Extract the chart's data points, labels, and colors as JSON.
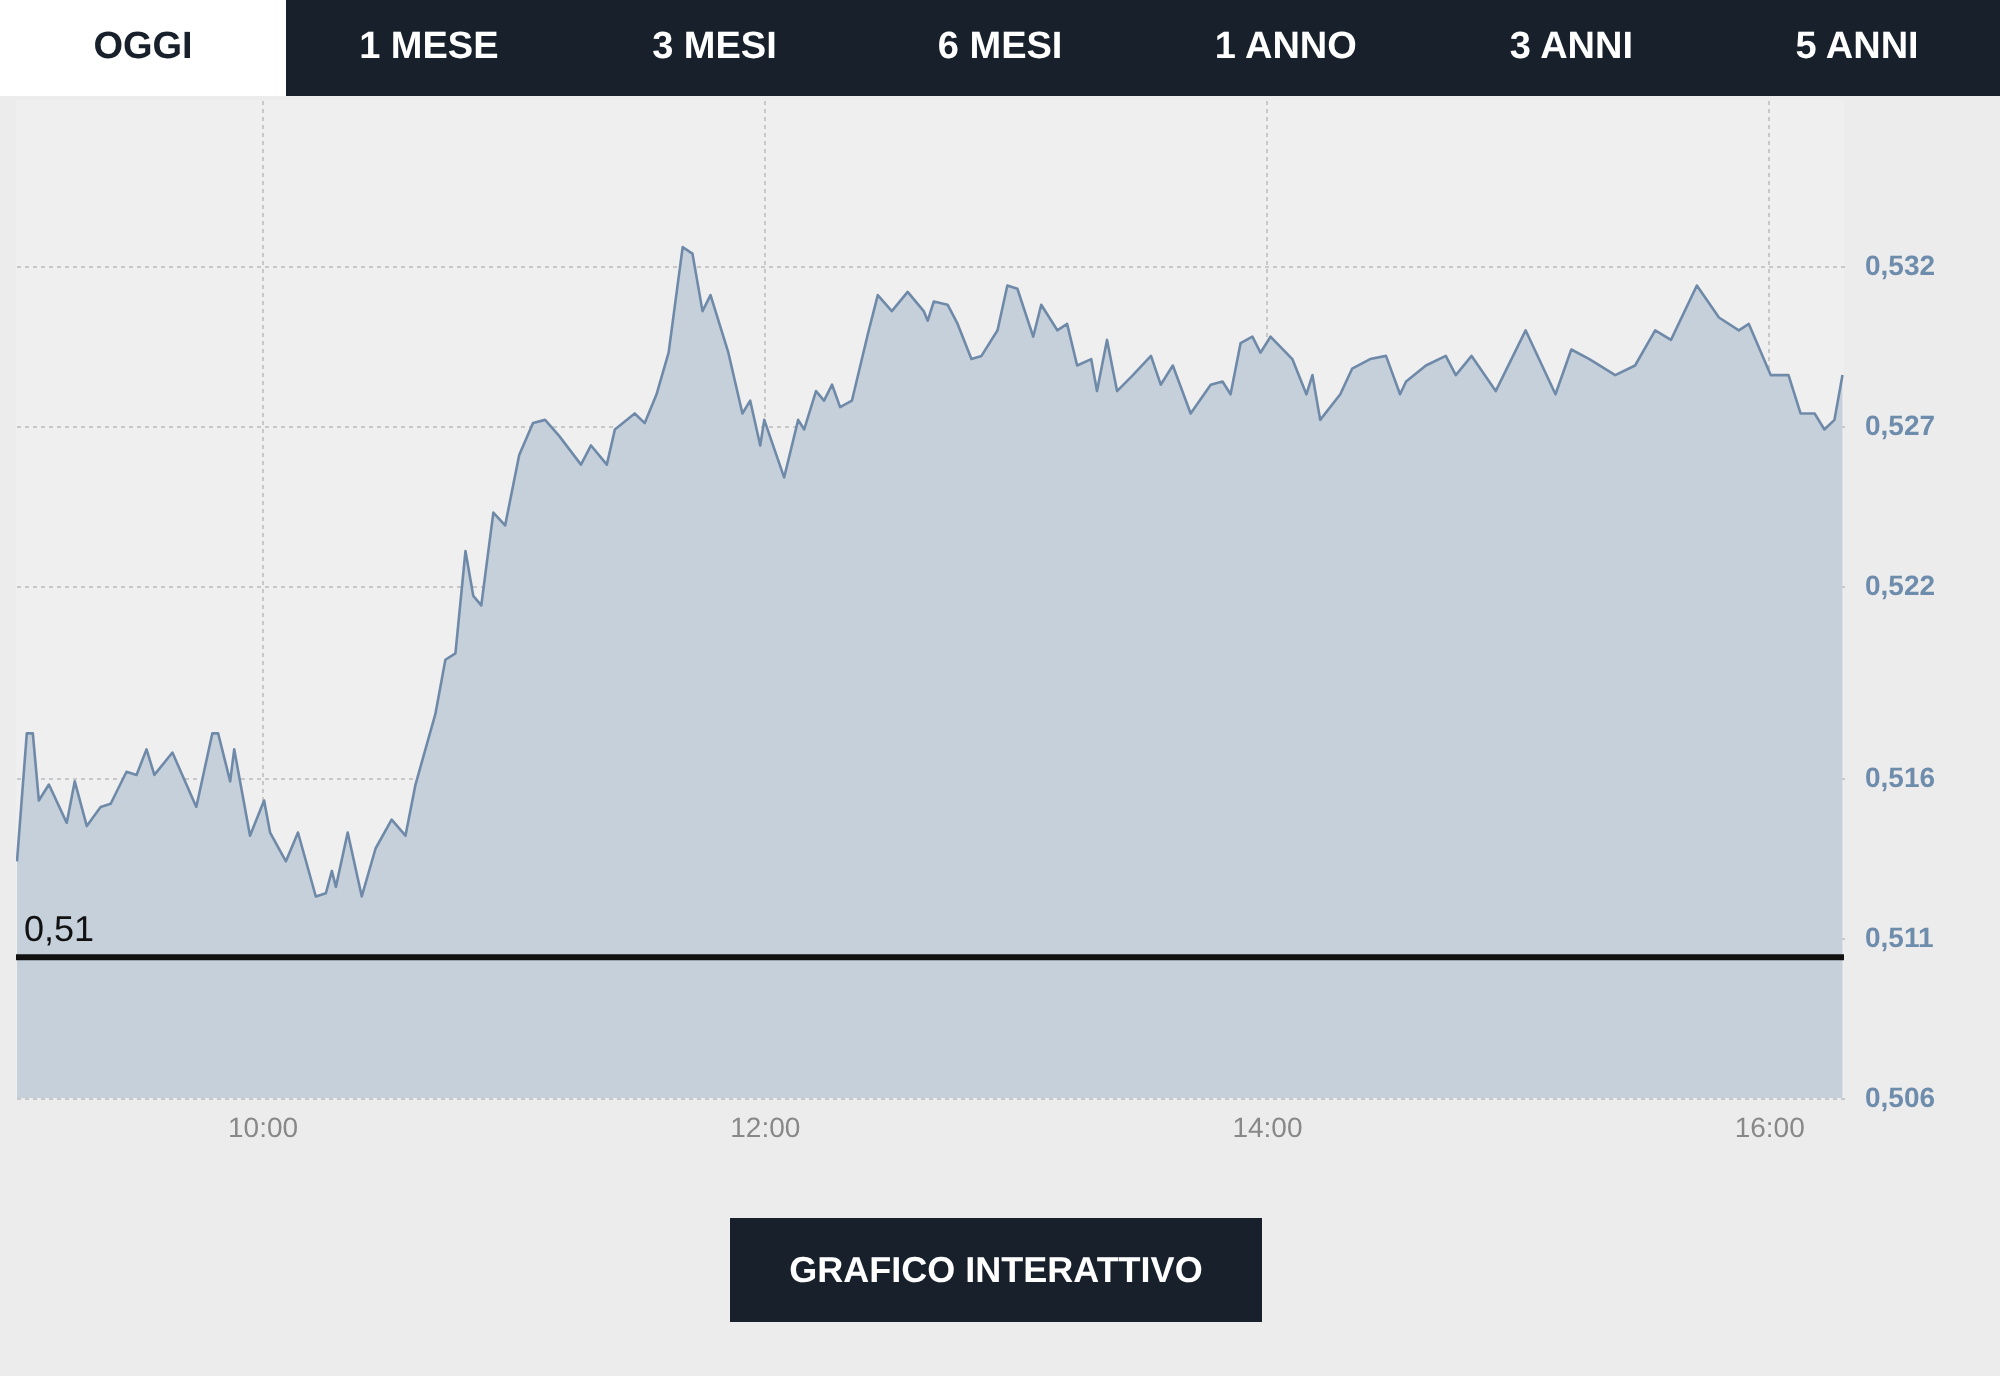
{
  "chart_data": {
    "type": "area",
    "annotations": [
      "OGGI",
      "1 MESE",
      "3 MESI",
      "6 MESI",
      "1 ANNO",
      "3 ANNI",
      "5 ANNI",
      "GRAFICO INTERATTIVO"
    ],
    "x": [
      9.024,
      9.063,
      9.087,
      9.111,
      9.151,
      9.222,
      9.254,
      9.302,
      9.357,
      9.397,
      9.46,
      9.5,
      9.54,
      9.571,
      9.643,
      9.738,
      9.802,
      9.825,
      9.873,
      9.889,
      9.952,
      10.008,
      10.032,
      10.095,
      10.143,
      10.214,
      10.254,
      10.278,
      10.294,
      10.341,
      10.397,
      10.452,
      10.516,
      10.571,
      10.611,
      10.69,
      10.73,
      10.77,
      10.81,
      10.841,
      10.873,
      10.921,
      10.968,
      11.024,
      11.079,
      11.127,
      11.183,
      11.27,
      11.31,
      11.373,
      11.405,
      11.484,
      11.524,
      11.571,
      11.619,
      11.675,
      11.714,
      11.754,
      11.786,
      11.857,
      11.913,
      11.944,
      11.984,
      12.0,
      12.079,
      12.135,
      12.159,
      12.206,
      12.238,
      12.27,
      12.302,
      12.349,
      12.413,
      12.452,
      12.508,
      12.571,
      12.635,
      12.651,
      12.675,
      12.73,
      12.77,
      12.825,
      12.865,
      12.929,
      12.968,
      13.008,
      13.071,
      13.103,
      13.167,
      13.206,
      13.246,
      13.302,
      13.325,
      13.365,
      13.405,
      13.468,
      13.54,
      13.579,
      13.627,
      13.698,
      13.778,
      13.825,
      13.857,
      13.897,
      13.944,
      13.976,
      14.016,
      14.103,
      14.159,
      14.183,
      14.214,
      14.294,
      14.341,
      14.413,
      14.476,
      14.532,
      14.556,
      14.635,
      14.714,
      14.754,
      14.817,
      14.913,
      15.032,
      15.151,
      15.214,
      15.286,
      15.389,
      15.468,
      15.548,
      15.611,
      15.714,
      15.802,
      15.881,
      15.921,
      16.008,
      16.079,
      16.127,
      16.183,
      16.222,
      16.262,
      16.294
    ],
    "series": [
      {
        "color": "#6f8aa8",
        "values": [
          0.5134,
          0.5174,
          0.5174,
          0.5153,
          0.5158,
          0.5146,
          0.5159,
          0.5145,
          0.5151,
          0.5152,
          0.5162,
          0.5161,
          0.5169,
          0.5161,
          0.5168,
          0.5151,
          0.5174,
          0.5174,
          0.5159,
          0.5169,
          0.5142,
          0.5153,
          0.5143,
          0.5134,
          0.5143,
          0.5123,
          0.5124,
          0.5131,
          0.5126,
          0.5143,
          0.5123,
          0.5138,
          0.5147,
          0.5142,
          0.5158,
          0.518,
          0.5197,
          0.5199,
          0.5231,
          0.5217,
          0.5214,
          0.5243,
          0.5239,
          0.5261,
          0.5271,
          0.5272,
          0.5267,
          0.5258,
          0.5264,
          0.5258,
          0.5269,
          0.5274,
          0.5271,
          0.528,
          0.5293,
          0.5326,
          0.5324,
          0.5306,
          0.5311,
          0.5293,
          0.5274,
          0.5278,
          0.5264,
          0.5272,
          0.5254,
          0.5272,
          0.5269,
          0.5281,
          0.5278,
          0.5283,
          0.5276,
          0.5278,
          0.5299,
          0.5311,
          0.5306,
          0.5312,
          0.5306,
          0.5303,
          0.5309,
          0.5308,
          0.5302,
          0.5291,
          0.5292,
          0.53,
          0.5314,
          0.5313,
          0.5298,
          0.5308,
          0.53,
          0.5302,
          0.5289,
          0.5291,
          0.5281,
          0.5297,
          0.5281,
          0.5286,
          0.5292,
          0.5283,
          0.5289,
          0.5274,
          0.5283,
          0.5284,
          0.528,
          0.5296,
          0.5298,
          0.5293,
          0.5298,
          0.5291,
          0.528,
          0.5286,
          0.5272,
          0.528,
          0.5288,
          0.5291,
          0.5292,
          0.528,
          0.5284,
          0.5289,
          0.5292,
          0.5286,
          0.5292,
          0.5281,
          0.53,
          0.528,
          0.5294,
          0.5291,
          0.5286,
          0.5289,
          0.53,
          0.5297,
          0.5314,
          0.5304,
          0.53,
          0.5302,
          0.5286,
          0.5286,
          0.5274,
          0.5274,
          0.5269,
          0.5272,
          0.5286
        ]
      }
    ],
    "xlim": [
      9.02,
      16.3
    ],
    "ylim": [
      0.506,
      0.5372
    ],
    "xticks": [
      {
        "value": 10,
        "label": "10:00"
      },
      {
        "value": 12,
        "label": "12:00"
      },
      {
        "value": 14,
        "label": "14:00"
      },
      {
        "value": 16,
        "label": "16:00"
      }
    ],
    "yticks": [
      {
        "value": 0.506,
        "label": "0,506"
      },
      {
        "value": 0.511,
        "label": "0,511"
      },
      {
        "value": 0.516,
        "label": "0,516"
      },
      {
        "value": 0.522,
        "label": "0,522"
      },
      {
        "value": 0.527,
        "label": "0,527"
      },
      {
        "value": 0.532,
        "label": "0,532"
      }
    ],
    "ref_lines": [
      {
        "axis": "y",
        "value": 0.5104,
        "label": "0,51",
        "color": "#111111"
      }
    ],
    "grid": true
  }
}
